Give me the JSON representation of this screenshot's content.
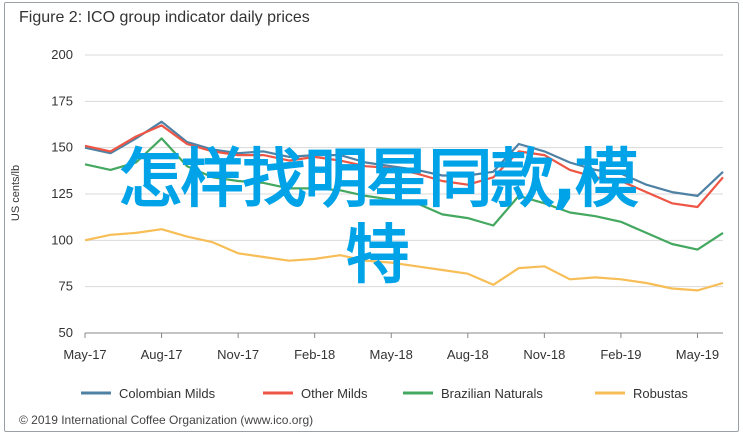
{
  "title": "Figure 2: ICO group indicator daily prices",
  "copyright": "© 2019 International Coffee Organization (www.ico.org)",
  "overlay_text": {
    "line1": "怎样找明星同款,模",
    "line2": "特"
  },
  "colors": {
    "Colombian Milds": "#4f81a4",
    "Other Milds": "#ee5544",
    "Brazilian Naturals": "#44a860",
    "Robustas": "#f7be57",
    "grid": "#d9d9d9",
    "overlay": "#00a3e8"
  },
  "chart_data": {
    "type": "line",
    "title": "Figure 2: ICO group indicator daily prices",
    "ylabel": "US cents/lb",
    "xlabel": "",
    "ylim": [
      50,
      200
    ],
    "yticks": [
      50,
      75,
      100,
      125,
      150,
      175,
      200
    ],
    "xticks": [
      "May-17",
      "Aug-17",
      "Nov-17",
      "Feb-18",
      "May-18",
      "Aug-18",
      "Nov-18",
      "Feb-19",
      "May-19"
    ],
    "x": [
      "May-17",
      "Jun-17",
      "Jul-17",
      "Aug-17",
      "Sep-17",
      "Oct-17",
      "Nov-17",
      "Dec-17",
      "Jan-18",
      "Feb-18",
      "Mar-18",
      "Apr-18",
      "May-18",
      "Jun-18",
      "Jul-18",
      "Aug-18",
      "Sep-18",
      "Oct-18",
      "Nov-18",
      "Dec-18",
      "Jan-19",
      "Feb-19",
      "Mar-19",
      "Apr-19",
      "May-19",
      "Jun-19"
    ],
    "legend_position": "bottom",
    "grid": true,
    "series": [
      {
        "name": "Colombian Milds",
        "values": [
          150,
          147,
          155,
          164,
          153,
          149,
          147,
          148,
          145,
          146,
          146,
          142,
          140,
          138,
          135,
          135,
          137,
          152,
          148,
          142,
          138,
          136,
          130,
          126,
          124,
          137
        ]
      },
      {
        "name": "Other Milds",
        "values": [
          151,
          148,
          156,
          162,
          152,
          148,
          146,
          146,
          143,
          145,
          143,
          140,
          139,
          136,
          132,
          130,
          134,
          148,
          146,
          138,
          134,
          132,
          126,
          120,
          118,
          134
        ]
      },
      {
        "name": "Brazilian Naturals",
        "values": [
          141,
          138,
          142,
          155,
          140,
          134,
          132,
          131,
          128,
          128,
          127,
          124,
          122,
          120,
          114,
          112,
          108,
          124,
          120,
          115,
          113,
          110,
          104,
          98,
          95,
          104
        ]
      },
      {
        "name": "Robustas",
        "values": [
          100,
          103,
          104,
          106,
          102,
          99,
          93,
          91,
          89,
          90,
          92,
          89,
          88,
          86,
          84,
          82,
          76,
          85,
          86,
          79,
          80,
          79,
          77,
          74,
          73,
          77
        ]
      }
    ]
  }
}
